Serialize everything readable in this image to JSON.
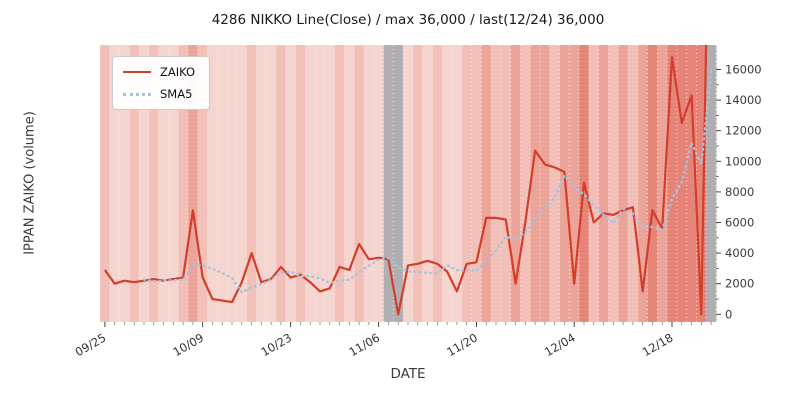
{
  "legend": {
    "items": [
      {
        "label": "ZAIKO",
        "color": "#d43d2a",
        "style": "solid"
      },
      {
        "label": "SMA5",
        "color": "#a6c3dd",
        "style": "dotted"
      }
    ],
    "position": "upper left"
  },
  "chart_data": {
    "type": "line",
    "title": "4286 NIKKO Line(Close) / max 36,000 / last(12/24) 36,000",
    "xlabel": "DATE",
    "ylabel": "IPPAN ZAIKO (volume)",
    "ylim": [
      -500,
      17600
    ],
    "y_ticks": [
      0,
      2000,
      4000,
      6000,
      8000,
      10000,
      12000,
      14000,
      16000
    ],
    "x_tick_labels": [
      "09/25",
      "10/09",
      "10/23",
      "11/06",
      "11/20",
      "12/04",
      "12/18"
    ],
    "x_tick_indices": [
      0,
      10,
      19,
      28,
      38,
      48,
      58
    ],
    "grid": "vertical white dotted per day",
    "legend_position": "upper left",
    "dates": [
      "09/25",
      "09/26",
      "09/27",
      "09/30",
      "10/01",
      "10/02",
      "10/03",
      "10/04",
      "10/07",
      "10/08",
      "10/09",
      "10/10",
      "10/11",
      "10/15",
      "10/16",
      "10/17",
      "10/18",
      "10/21",
      "10/22",
      "10/23",
      "10/24",
      "10/25",
      "10/28",
      "10/29",
      "10/30",
      "10/31",
      "11/01",
      "11/05",
      "11/06",
      "11/07",
      "11/08",
      "11/11",
      "11/12",
      "11/13",
      "11/14",
      "11/15",
      "11/18",
      "11/19",
      "11/20",
      "11/21",
      "11/22",
      "11/25",
      "11/26",
      "11/27",
      "11/28",
      "11/29",
      "12/02",
      "12/03",
      "12/04",
      "12/05",
      "12/06",
      "12/09",
      "12/10",
      "12/11",
      "12/12",
      "12/13",
      "12/16",
      "12/17",
      "12/18",
      "12/19",
      "12/20",
      "12/23",
      "12/24"
    ],
    "series": [
      {
        "name": "ZAIKO",
        "color": "#d43d2a",
        "style": "solid",
        "values": [
          2900,
          2000,
          2200,
          2100,
          2200,
          2300,
          2200,
          2300,
          2400,
          6800,
          2400,
          1000,
          900,
          800,
          2100,
          4000,
          2100,
          2300,
          3100,
          2400,
          2600,
          2100,
          1500,
          1700,
          3100,
          2900,
          4600,
          3600,
          3700,
          3600,
          0,
          3200,
          3300,
          3500,
          3300,
          2800,
          1500,
          3300,
          3400,
          6300,
          6300,
          6200,
          2000,
          6000,
          10700,
          9800,
          9600,
          9300,
          2000,
          8600,
          6000,
          6600,
          6500,
          6800,
          7000,
          1500,
          6800,
          5600,
          16800,
          12500,
          14300,
          0,
          36000
        ]
      },
      {
        "name": "SMA5",
        "color": "#a6c3dd",
        "style": "dotted",
        "values": [
          null,
          null,
          null,
          null,
          2280,
          2160,
          2200,
          2220,
          2280,
          3200,
          3220,
          2980,
          2700,
          2380,
          1440,
          1760,
          1980,
          2260,
          2720,
          2780,
          2500,
          2500,
          2340,
          2060,
          2200,
          2260,
          2760,
          3180,
          3580,
          3680,
          3100,
          2820,
          2760,
          2720,
          2660,
          3220,
          2880,
          2880,
          2860,
          3460,
          4160,
          5100,
          4840,
          5360,
          6240,
          6940,
          7620,
          9080,
          8280,
          7860,
          7100,
          6500,
          5940,
          6900,
          6580,
          5680,
          5720,
          5540,
          7540,
          8640,
          11200,
          9840,
          15920
        ]
      }
    ],
    "background_bands": {
      "codes": [
        "1",
        "0",
        "0",
        "1",
        "0",
        "1",
        "0",
        "0",
        "1",
        "2",
        "1",
        "0",
        "0",
        "0",
        "0",
        "1",
        "0",
        "0",
        "1",
        "0",
        "1",
        "0",
        "0",
        "0",
        "1",
        "0",
        "1",
        "0",
        "0",
        "g",
        "g",
        "0",
        "1",
        "0",
        "1",
        "0",
        "0",
        "1",
        "1",
        "2",
        "1",
        "1",
        "2",
        "1",
        "2",
        "2",
        "1",
        "2",
        "2",
        "3",
        "1",
        "2",
        "1",
        "2",
        "1",
        "2",
        "3",
        "2",
        "3",
        "3",
        "3",
        "3",
        "g"
      ],
      "colors": {
        "0": "#f5d5d0",
        "1": "#f1c1b9",
        "2": "#eba49a",
        "3": "#e58579",
        "g": "#b0aeb0"
      }
    },
    "annotations": {
      "max": 36000,
      "last_date": "12/24",
      "last_value": 36000
    }
  }
}
